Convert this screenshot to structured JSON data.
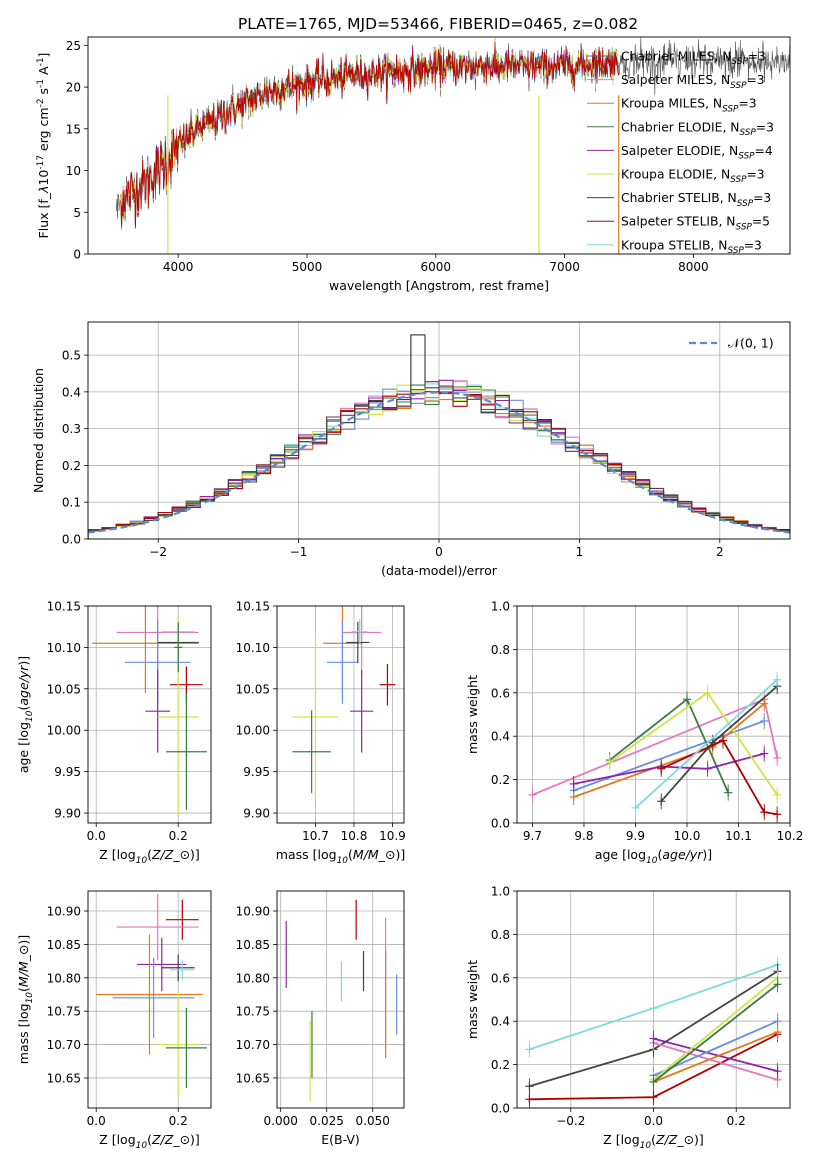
{
  "figure": {
    "title": "PLATE=1765, MJD=53466, FIBERID=0465, z=0.082"
  },
  "colors": {
    "chabrier_miles": "#1f77b4",
    "salpeter_miles": "#e377c2",
    "kroupa_miles": "#e07a1f",
    "chabrier_elodie": "#3a7d44",
    "salpeter_elodie": "#8e24aa",
    "kroupa_elodie": "#cfe34a",
    "chabrier_stelib": "#444444",
    "salpeter_stelib": "#b00000",
    "kroupa_stelib": "#7fd8e0",
    "gaussian": "#5b8bd6",
    "miles_blue": "#6a8ee0"
  },
  "chart_data": [
    {
      "id": "spectrum",
      "type": "line",
      "xlabel": "wavelength [Angstrom, rest frame]",
      "ylabel": "Flux [f$_\\lambda$10$^{-17}$ erg cm$^{-2}$ s$^{-1}$ A$^{-1}$]",
      "xlim": [
        3300,
        8750
      ],
      "ylim": [
        0,
        26
      ],
      "xticks": [
        4000,
        5000,
        6000,
        7000,
        8000
      ],
      "yticks": [
        0,
        5,
        10,
        15,
        20,
        25
      ],
      "legend_position": "top-right",
      "legend": [
        "Chabrier MILES, N$_{SSP}$=3",
        "Salpeter MILES, N$_{SSP}$=3",
        "Kroupa MILES, N$_{SSP}$=3",
        "Chabrier ELODIE, N$_{SSP}$=3",
        "Salpeter ELODIE, N$_{SSP}$=4",
        "Kroupa ELODIE, N$_{SSP}$=3",
        "Chabrier STELIB, N$_{SSP}$=3",
        "Salpeter STELIB, N$_{SSP}$=5",
        "Kroupa STELIB, N$_{SSP}$=3"
      ],
      "continuum": [
        [
          3520,
          5.5
        ],
        [
          3600,
          7
        ],
        [
          3750,
          8.5
        ],
        [
          3900,
          11
        ],
        [
          4000,
          13
        ],
        [
          4150,
          15
        ],
        [
          4400,
          17
        ],
        [
          4700,
          19.5
        ],
        [
          5000,
          20.5
        ],
        [
          5400,
          21.5
        ],
        [
          5800,
          22
        ],
        [
          6200,
          22.5
        ],
        [
          6600,
          22.5
        ],
        [
          7000,
          22.5
        ],
        [
          7400,
          23
        ],
        [
          7800,
          23
        ],
        [
          8300,
          23
        ],
        [
          8750,
          23
        ]
      ]
    },
    {
      "id": "residual-histogram",
      "type": "bar",
      "xlabel": "(data-model)/error",
      "ylabel": "Normed distribution",
      "xlim": [
        -2.5,
        2.5
      ],
      "ylim": [
        0,
        0.59
      ],
      "xticks": [
        -2,
        -1,
        0,
        1,
        2
      ],
      "yticks": [
        0.0,
        0.1,
        0.2,
        0.3,
        0.4,
        0.5
      ],
      "legend_position": "top-right",
      "legend": [
        "$\\mathcal{N}(0,1)$"
      ],
      "bin_width": 0.1,
      "series_spread": 0.035
    },
    {
      "id": "age-vs-Z",
      "type": "scatter",
      "xlabel": "Z [log$_{10}$($Z/Z_\\odot$)]",
      "ylabel": "age  [log$_{10}$($age/yr$)]",
      "xlim": [
        -0.02,
        0.28
      ],
      "ylim": [
        9.888,
        10.15
      ],
      "xticks": [
        0.0,
        0.2
      ],
      "yticks": [
        9.9,
        9.95,
        10.0,
        10.05,
        10.1,
        10.15
      ],
      "points": [
        {
          "c": "salpeter_miles",
          "x": 0.15,
          "xe": 0.1,
          "y": 10.118,
          "ye": 0.05
        },
        {
          "c": "kroupa_miles",
          "x": 0.12,
          "xe": 0.13,
          "y": 10.105,
          "ye": 0.06
        },
        {
          "c": "miles_blue",
          "x": 0.15,
          "xe": 0.08,
          "y": 10.082,
          "ye": 0.05
        },
        {
          "c": "chabrier_stelib",
          "x": 0.2,
          "xe": 0.05,
          "y": 10.106,
          "ye": 0.025
        },
        {
          "c": "kroupa_stelib",
          "x": 0.2,
          "xe": 0.04,
          "y": 10.119,
          "ye": 0.015
        },
        {
          "c": "salpeter_elodie",
          "x": 0.15,
          "xe": 0.03,
          "y": 10.023,
          "ye": 0.05
        },
        {
          "c": "salpeter_stelib",
          "x": 0.22,
          "xe": 0.04,
          "y": 10.055,
          "ye": 0.022
        },
        {
          "c": "kroupa_elodie",
          "x": 0.2,
          "xe": 0.05,
          "y": 10.016,
          "ye": 0.12
        },
        {
          "c": "chabrier_elodie",
          "x": 0.22,
          "xe": 0.05,
          "y": 9.974,
          "ye": 0.07
        },
        {
          "c": "chabrier_elodie",
          "x": 0.2,
          "xe": 0.01,
          "y": 10.1,
          "ye": 0.03
        }
      ]
    },
    {
      "id": "age-vs-mass",
      "type": "scatter",
      "xlabel": "mass [log$_{10}$($M/M_\\odot$)]",
      "ylabel": "",
      "xlim": [
        10.6,
        10.93
      ],
      "ylim": [
        9.888,
        10.15
      ],
      "xticks": [
        10.7,
        10.8,
        10.9
      ],
      "yticks": [
        9.9,
        9.95,
        10.0,
        10.05,
        10.1,
        10.15
      ],
      "points": [
        {
          "c": "salpeter_miles",
          "x": 10.82,
          "xe": 0.05,
          "y": 10.118,
          "ye": 0.05
        },
        {
          "c": "kroupa_miles",
          "x": 10.77,
          "xe": 0.05,
          "y": 10.105,
          "ye": 0.06
        },
        {
          "c": "miles_blue",
          "x": 10.77,
          "xe": 0.04,
          "y": 10.082,
          "ye": 0.05
        },
        {
          "c": "chabrier_stelib",
          "x": 10.81,
          "xe": 0.03,
          "y": 10.106,
          "ye": 0.025
        },
        {
          "c": "kroupa_stelib",
          "x": 10.815,
          "xe": 0.02,
          "y": 10.119,
          "ye": 0.015
        },
        {
          "c": "salpeter_elodie",
          "x": 10.82,
          "xe": 0.03,
          "y": 10.023,
          "ye": 0.05
        },
        {
          "c": "salpeter_stelib",
          "x": 10.887,
          "xe": 0.02,
          "y": 10.055,
          "ye": 0.025
        },
        {
          "c": "kroupa_elodie",
          "x": 10.7,
          "xe": 0.06,
          "y": 10.016,
          "ye": 0.1
        },
        {
          "c": "chabrier_elodie",
          "x": 10.69,
          "xe": 0.05,
          "y": 9.974,
          "ye": 0.05
        }
      ]
    },
    {
      "id": "massweight-vs-age",
      "type": "line",
      "xlabel": "age  [log$_{10}$($age/yr$)]",
      "ylabel": "mass weight",
      "xlim": [
        9.67,
        10.2
      ],
      "ylim": [
        0,
        1.0
      ],
      "xticks": [
        9.7,
        9.8,
        9.9,
        10.0,
        10.1,
        10.2
      ],
      "yticks": [
        0.0,
        0.2,
        0.4,
        0.6,
        0.8,
        1.0
      ],
      "series": [
        {
          "c": "salpeter_miles",
          "x": [
            9.7,
            10.15,
            10.175
          ],
          "y": [
            0.13,
            0.57,
            0.3
          ]
        },
        {
          "c": "miles_blue",
          "x": [
            9.78,
            10.15
          ],
          "y": [
            0.15,
            0.47
          ]
        },
        {
          "c": "kroupa_miles",
          "x": [
            9.78,
            10.05,
            10.15
          ],
          "y": [
            0.12,
            0.35,
            0.55
          ]
        },
        {
          "c": "chabrier_elodie",
          "x": [
            9.85,
            10.0,
            10.08
          ],
          "y": [
            0.29,
            0.57,
            0.14
          ]
        },
        {
          "c": "salpeter_elodie",
          "x": [
            9.78,
            9.95,
            10.04,
            10.15
          ],
          "y": [
            0.18,
            0.26,
            0.25,
            0.32
          ]
        },
        {
          "c": "kroupa_elodie",
          "x": [
            9.85,
            10.04,
            10.175
          ],
          "y": [
            0.28,
            0.6,
            0.13
          ]
        },
        {
          "c": "chabrier_stelib",
          "x": [
            9.95,
            10.05,
            10.175
          ],
          "y": [
            0.1,
            0.37,
            0.63
          ]
        },
        {
          "c": "salpeter_stelib",
          "x": [
            9.95,
            10.07,
            10.15,
            10.175
          ],
          "y": [
            0.25,
            0.38,
            0.05,
            0.04
          ]
        },
        {
          "c": "kroupa_stelib",
          "x": [
            9.9,
            10.175
          ],
          "y": [
            0.07,
            0.66
          ]
        }
      ]
    },
    {
      "id": "mass-vs-Z",
      "type": "scatter",
      "xlabel": "Z [log$_{10}$($Z/Z_\\odot$)]",
      "ylabel": "mass [log$_{10}$($M/M_\\odot$)]",
      "xlim": [
        -0.02,
        0.28
      ],
      "ylim": [
        10.605,
        10.93
      ],
      "xticks": [
        0.0,
        0.2
      ],
      "yticks": [
        10.65,
        10.7,
        10.75,
        10.8,
        10.85,
        10.9
      ],
      "points": [
        {
          "c": "salpeter_stelib",
          "x": 0.21,
          "xe": 0.04,
          "y": 10.887,
          "ye": 0.03
        },
        {
          "c": "salpeter_miles",
          "x": 0.15,
          "xe": 0.1,
          "y": 10.876,
          "ye": 0.05
        },
        {
          "c": "salpeter_elodie",
          "x": 0.16,
          "xe": 0.06,
          "y": 10.82,
          "ye": 0.04
        },
        {
          "c": "chabrier_stelib",
          "x": 0.2,
          "xe": 0.04,
          "y": 10.815,
          "ye": 0.02
        },
        {
          "c": "kroupa_stelib",
          "x": 0.21,
          "xe": 0.03,
          "y": 10.812,
          "ye": 0.015
        },
        {
          "c": "kroupa_miles",
          "x": 0.13,
          "xe": 0.13,
          "y": 10.775,
          "ye": 0.09
        },
        {
          "c": "miles_blue",
          "x": 0.14,
          "xe": 0.1,
          "y": 10.77,
          "ye": 0.06
        },
        {
          "c": "kroupa_elodie",
          "x": 0.2,
          "xe": 0.05,
          "y": 10.7,
          "ye": 0.08
        },
        {
          "c": "chabrier_elodie",
          "x": 0.22,
          "xe": 0.05,
          "y": 10.695,
          "ye": 0.06
        }
      ]
    },
    {
      "id": "mass-vs-ebv",
      "type": "scatter",
      "xlabel": "E(B-V)",
      "ylabel": "",
      "xlim": [
        -0.002,
        0.067
      ],
      "ylim": [
        10.605,
        10.93
      ],
      "xticks": [
        0.0,
        0.025,
        0.05
      ],
      "xtick_labels": [
        "0.000",
        "0.025",
        "0.050"
      ],
      "yticks": [
        10.65,
        10.7,
        10.75,
        10.8,
        10.85,
        10.9
      ],
      "points": [
        {
          "c": "salpeter_elodie",
          "x": 0.003,
          "y": 10.835,
          "ye": 0.05
        },
        {
          "c": "chabrier_elodie",
          "x": 0.017,
          "y": 10.7,
          "ye": 0.05
        },
        {
          "c": "kroupa_elodie",
          "x": 0.016,
          "y": 10.675,
          "ye": 0.06
        },
        {
          "c": "kroupa_stelib",
          "x": 0.033,
          "y": 10.795,
          "ye": 0.03
        },
        {
          "c": "salpeter_stelib",
          "x": 0.041,
          "y": 10.887,
          "ye": 0.03
        },
        {
          "c": "chabrier_stelib",
          "x": 0.045,
          "y": 10.81,
          "ye": 0.03
        },
        {
          "c": "salpeter_miles",
          "x": 0.057,
          "y": 10.79,
          "ye": 0.1
        },
        {
          "c": "kroupa_miles",
          "x": 0.057,
          "y": 10.76,
          "ye": 0.08
        },
        {
          "c": "miles_blue",
          "x": 0.063,
          "y": 10.76,
          "ye": 0.045
        }
      ]
    },
    {
      "id": "massweight-vs-Z",
      "type": "line",
      "xlabel": "Z [log$_{10}$($Z/Z_\\odot$)]",
      "ylabel": "mass weight",
      "xlim": [
        -0.33,
        0.33
      ],
      "ylim": [
        0,
        1.0
      ],
      "xticks": [
        -0.2,
        0.0,
        0.2
      ],
      "xtick_labels": [
        "−0.2",
        "0.0",
        "0.2"
      ],
      "yticks": [
        0.0,
        0.2,
        0.4,
        0.6,
        0.8,
        1.0
      ],
      "series": [
        {
          "c": "kroupa_stelib",
          "x": [
            -0.3,
            0.0,
            0.3
          ],
          "y": [
            0.27,
            0.46,
            0.66
          ]
        },
        {
          "c": "chabrier_stelib",
          "x": [
            -0.3,
            0.0,
            0.3
          ],
          "y": [
            0.1,
            0.27,
            0.63
          ]
        },
        {
          "c": "salpeter_stelib",
          "x": [
            -0.3,
            0.0,
            0.3
          ],
          "y": [
            0.04,
            0.05,
            0.34
          ]
        },
        {
          "c": "salpeter_miles",
          "x": [
            0.0,
            0.3
          ],
          "y": [
            0.3,
            0.13
          ]
        },
        {
          "c": "salpeter_elodie",
          "x": [
            0.0,
            0.3
          ],
          "y": [
            0.32,
            0.17
          ]
        },
        {
          "c": "miles_blue",
          "x": [
            0.0,
            0.3
          ],
          "y": [
            0.15,
            0.4
          ]
        },
        {
          "c": "kroupa_miles",
          "x": [
            0.0,
            0.3
          ],
          "y": [
            0.12,
            0.35
          ]
        },
        {
          "c": "kroupa_elodie",
          "x": [
            0.0,
            0.3
          ],
          "y": [
            0.13,
            0.6
          ]
        },
        {
          "c": "chabrier_elodie",
          "x": [
            0.0,
            0.3
          ],
          "y": [
            0.12,
            0.57
          ]
        }
      ]
    }
  ]
}
